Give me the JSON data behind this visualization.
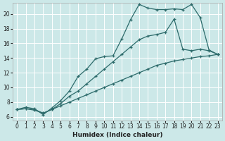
{
  "xlabel": "Humidex (Indice chaleur)",
  "bg_color": "#cce8e8",
  "grid_color": "#ffffff",
  "line_color": "#2d6b6b",
  "xlim": [
    -0.5,
    23.5
  ],
  "ylim": [
    5.5,
    21.5
  ],
  "xticks": [
    0,
    1,
    2,
    3,
    4,
    5,
    6,
    7,
    8,
    9,
    10,
    11,
    12,
    13,
    14,
    15,
    16,
    17,
    18,
    19,
    20,
    21,
    22,
    23
  ],
  "yticks": [
    6,
    8,
    10,
    12,
    14,
    16,
    18,
    20
  ],
  "line1_x": [
    0,
    1,
    2,
    3,
    4,
    5,
    6,
    7,
    8,
    9,
    10,
    11,
    12,
    13,
    14,
    15,
    16,
    17,
    18,
    19,
    20,
    21,
    22,
    23
  ],
  "line1_y": [
    7.0,
    7.3,
    7.1,
    6.3,
    7.2,
    8.2,
    9.5,
    11.5,
    12.5,
    13.9,
    14.2,
    14.3,
    16.6,
    19.2,
    21.3,
    20.8,
    20.6,
    20.6,
    20.7,
    20.6,
    21.3,
    19.5,
    15.1,
    14.5
  ],
  "line2_x": [
    0,
    1,
    2,
    3,
    4,
    5,
    6,
    7,
    8,
    9,
    10,
    11,
    12,
    13,
    14,
    15,
    16,
    17,
    18,
    19,
    20,
    21,
    22,
    23
  ],
  "line2_y": [
    7.0,
    7.1,
    7.0,
    6.5,
    7.0,
    7.8,
    8.8,
    9.5,
    10.5,
    11.5,
    12.5,
    13.5,
    14.5,
    15.5,
    16.5,
    17.0,
    17.2,
    17.5,
    19.3,
    15.2,
    15.0,
    15.2,
    15.0,
    14.5
  ],
  "line3_x": [
    0,
    1,
    2,
    3,
    4,
    5,
    6,
    7,
    8,
    9,
    10,
    11,
    12,
    13,
    14,
    15,
    16,
    17,
    18,
    19,
    20,
    21,
    22,
    23
  ],
  "line3_y": [
    7.0,
    7.1,
    6.9,
    6.5,
    7.0,
    7.5,
    8.0,
    8.5,
    9.0,
    9.5,
    10.0,
    10.5,
    11.0,
    11.5,
    12.0,
    12.5,
    13.0,
    13.3,
    13.6,
    13.8,
    14.0,
    14.2,
    14.3,
    14.5
  ]
}
